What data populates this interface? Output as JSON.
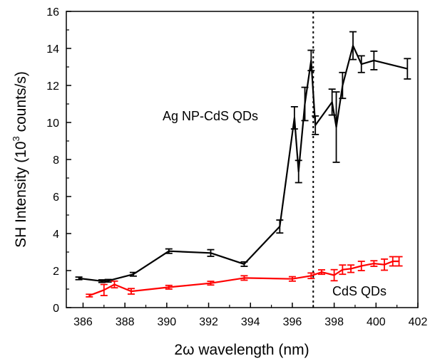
{
  "chart_data": {
    "type": "line",
    "title": "",
    "xlabel": "2ω wavelength (nm)",
    "ylabel_main": "SH Intensity (10",
    "ylabel_sup": "3",
    "ylabel_tail": " counts/s)",
    "xlim": [
      385.2,
      402
    ],
    "ylim": [
      0,
      16
    ],
    "xticks": [
      386,
      388,
      390,
      392,
      394,
      396,
      398,
      400,
      402
    ],
    "yticks": [
      0,
      2,
      4,
      6,
      8,
      10,
      12,
      14,
      16
    ],
    "grid": false,
    "legend": "none",
    "vline": {
      "x": 397,
      "style": "dotted",
      "color": "#000000"
    },
    "series": [
      {
        "name": "Ag NP-CdS QDs",
        "color": "#000000",
        "x": [
          385.8,
          386.9,
          387.2,
          388.4,
          390.1,
          392.1,
          393.7,
          395.4,
          396.1,
          396.3,
          396.6,
          396.9,
          397.1,
          397.9,
          398.1,
          398.4,
          398.9,
          399.3,
          399.9,
          401.5
        ],
        "y": [
          1.58,
          1.43,
          1.45,
          1.8,
          3.05,
          2.95,
          2.35,
          4.38,
          10.25,
          7.35,
          11.0,
          13.35,
          9.85,
          11.1,
          9.75,
          12.0,
          14.15,
          13.15,
          13.35,
          12.9
        ],
        "err": [
          0.07,
          0.07,
          0.07,
          0.1,
          0.12,
          0.18,
          0.12,
          0.35,
          0.6,
          0.6,
          0.9,
          0.55,
          0.5,
          0.7,
          1.9,
          0.7,
          0.75,
          0.45,
          0.5,
          0.55
        ]
      },
      {
        "name": "CdS QDs",
        "color": "#ff0000",
        "x": [
          386.3,
          387.0,
          387.5,
          388.3,
          390.1,
          392.1,
          393.7,
          396.0,
          396.9,
          397.4,
          398.0,
          398.4,
          398.8,
          399.3,
          399.9,
          400.4,
          400.8,
          401.1
        ],
        "y": [
          0.65,
          0.95,
          1.25,
          0.88,
          1.1,
          1.32,
          1.6,
          1.55,
          1.72,
          1.92,
          1.75,
          2.05,
          2.1,
          2.25,
          2.38,
          2.32,
          2.5,
          2.5
        ],
        "err": [
          0.07,
          0.3,
          0.18,
          0.15,
          0.1,
          0.1,
          0.12,
          0.12,
          0.15,
          0.12,
          0.3,
          0.25,
          0.2,
          0.25,
          0.15,
          0.3,
          0.25,
          0.25
        ]
      }
    ]
  }
}
